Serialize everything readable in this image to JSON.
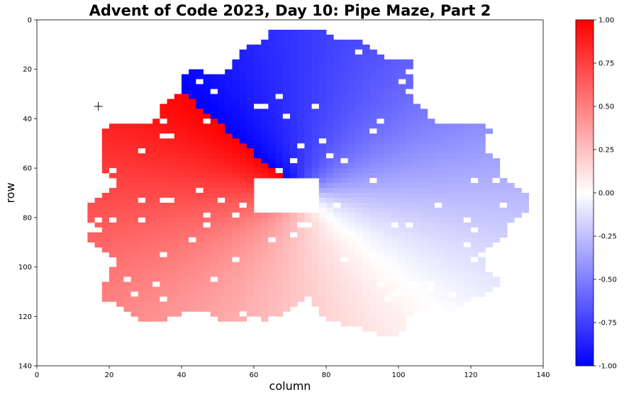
{
  "chart_data": {
    "type": "heatmap",
    "title": "Advent of Code 2023, Day 10: Pipe Maze, Part 2",
    "xlabel": "column",
    "ylabel": "row",
    "xlim": [
      0,
      140
    ],
    "ylim": [
      140,
      0
    ],
    "x_ticks": [
      "0",
      "20",
      "40",
      "60",
      "80",
      "100",
      "120",
      "140"
    ],
    "y_ticks": [
      "0",
      "20",
      "40",
      "60",
      "80",
      "100",
      "120",
      "140"
    ],
    "colormap": "bwr",
    "clim": [
      -1.0,
      1.0
    ],
    "colorbar_ticks": [
      "1.00",
      "0.75",
      "0.50",
      "0.25",
      "0.00",
      "-0.25",
      "-0.50",
      "-0.75",
      "-1.00"
    ],
    "start_marker": {
      "symbol": "+",
      "x": 17,
      "y": 35
    },
    "colors": {
      "low": "#0000ff",
      "mid": "#ffffff",
      "high": "#ff0000"
    }
  }
}
